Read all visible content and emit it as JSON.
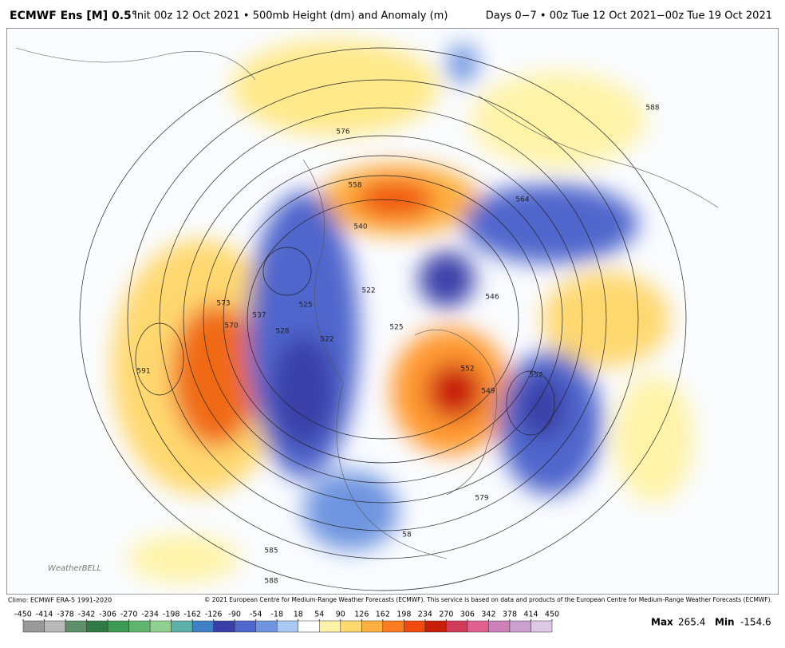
{
  "header": {
    "title_bold": "ECMWF Ens [M] 0.5°",
    "title_rest": "Init 00z 12 Oct 2021 • 500mb Height (dm) and Anomaly (m)",
    "period": "Days 0−7 • 00z Tue 12 Oct 2021−00z Tue 19 Oct 2021"
  },
  "map": {
    "logo": "WeatherBELL",
    "contour_labels": [
      "576",
      "558",
      "540",
      "522",
      "525",
      "591",
      "585",
      "588",
      "588",
      "573",
      "570",
      "537",
      "528",
      "525",
      "522",
      "549",
      "552",
      "546",
      "579",
      "58",
      "564",
      "552"
    ]
  },
  "footer": {
    "climo": "Climo: ECMWF ERA-5 1991-2020",
    "copyright": "© 2021 European Centre for Medium-Range Weather Forecasts (ECMWF). This service is based on data and products of the European Centre for Medium-Range Weather Forecasts (ECMWF).",
    "max_label": "Max",
    "max_value": "265.4",
    "min_label": "Min",
    "min_value": "-154.6"
  },
  "colorbar": {
    "ticks": [
      -450,
      -414,
      -378,
      -342,
      -306,
      -270,
      -234,
      -198,
      -162,
      -126,
      -90,
      -54,
      -18,
      18,
      54,
      90,
      126,
      162,
      198,
      234,
      270,
      306,
      342,
      378,
      414,
      450
    ],
    "colors": [
      "#9a9a9a",
      "#b9b9b9",
      "#5f8f6a",
      "#2f7a45",
      "#3d9a55",
      "#5fb56d",
      "#8fcf8f",
      "#5bb0a8",
      "#3f7fc4",
      "#3a3fa8",
      "#4f66cc",
      "#6f95e0",
      "#a9c9f2",
      "#ffffff",
      "#fff3a8",
      "#ffd870",
      "#ffb040",
      "#ff7d20",
      "#f04a10",
      "#c81e0a",
      "#d23a5a",
      "#e06090",
      "#d080b8",
      "#c9a0d0",
      "#ddc8e6"
    ]
  }
}
